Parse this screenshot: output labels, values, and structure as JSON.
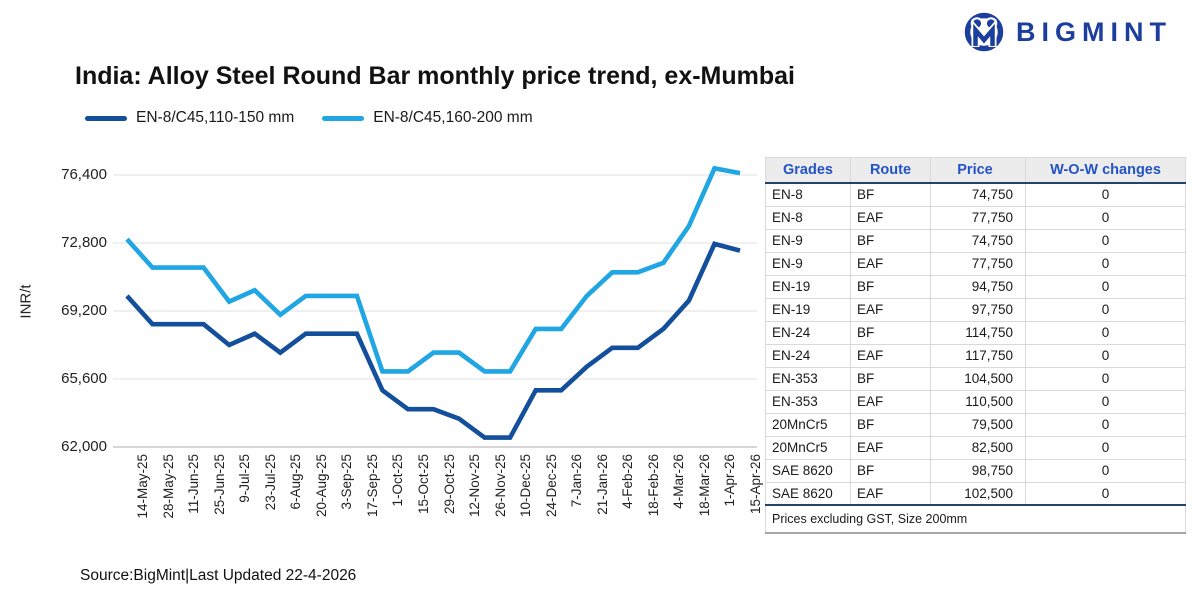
{
  "brand": {
    "name": "BIGMINT"
  },
  "title": "India: Alloy Steel Round Bar monthly price trend, ex-Mumbai",
  "source_note": "Source:BigMint|Last Updated 22-4-2026",
  "colors": {
    "brand_blue": "#1c3f9e",
    "series_dark": "#134f9b",
    "series_light": "#1fa6e3",
    "table_header_text": "#2353c5",
    "table_heavy_border": "#24426b",
    "gridline": "#e6e6e6",
    "axis_line": "#c9c9c9"
  },
  "chart_data": {
    "type": "line",
    "title": "India: Alloy Steel Round Bar monthly price trend, ex-Mumbai",
    "xlabel": "",
    "ylabel": "INR/t",
    "grid": "horizontal",
    "legend_position": "top-left",
    "ylim": [
      62000,
      76400
    ],
    "yticks": [
      62000,
      65600,
      69200,
      72800,
      76400
    ],
    "ytick_labels": [
      "62,000",
      "65,600",
      "69,200",
      "72,800",
      "76,400"
    ],
    "x": [
      "14-May-25",
      "28-May-25",
      "11-Jun-25",
      "25-Jun-25",
      "9-Jul-25",
      "23-Jul-25",
      "6-Aug-25",
      "20-Aug-25",
      "3-Sep-25",
      "17-Sep-25",
      "1-Oct-25",
      "15-Oct-25",
      "29-Oct-25",
      "12-Nov-25",
      "26-Nov-25",
      "10-Dec-25",
      "24-Dec-25",
      "7-Jan-26",
      "21-Jan-26",
      "4-Feb-26",
      "18-Feb-26",
      "4-Mar-26",
      "18-Mar-26",
      "1-Apr-26",
      "15-Apr-26"
    ],
    "series": [
      {
        "name": "EN-8/C45,110-150 mm",
        "color": "#134f9b",
        "values": [
          70000,
          68500,
          68500,
          68500,
          67400,
          68000,
          67000,
          68000,
          68000,
          68000,
          65000,
          64000,
          64000,
          63500,
          62500,
          62500,
          65000,
          65000,
          66250,
          67250,
          67250,
          68250,
          69750,
          72750,
          72400
        ]
      },
      {
        "name": "EN-8/C45,160-200 mm",
        "color": "#1fa6e3",
        "values": [
          73000,
          71500,
          71500,
          71500,
          69700,
          70300,
          69000,
          70000,
          70000,
          70000,
          66000,
          66000,
          67000,
          67000,
          66000,
          66000,
          68250,
          68250,
          70000,
          71250,
          71250,
          71750,
          73700,
          76750,
          76500
        ]
      }
    ]
  },
  "table": {
    "headers": [
      "Grades",
      "Route",
      "Price",
      "W-O-W changes"
    ],
    "rows": [
      [
        "EN-8",
        "BF",
        "74,750",
        "0"
      ],
      [
        "EN-8",
        "EAF",
        "77,750",
        "0"
      ],
      [
        "EN-9",
        "BF",
        "74,750",
        "0"
      ],
      [
        "EN-9",
        "EAF",
        "77,750",
        "0"
      ],
      [
        "EN-19",
        "BF",
        "94,750",
        "0"
      ],
      [
        "EN-19",
        "EAF",
        "97,750",
        "0"
      ],
      [
        "EN-24",
        "BF",
        "114,750",
        "0"
      ],
      [
        "EN-24",
        "EAF",
        "117,750",
        "0"
      ],
      [
        "EN-353",
        "BF",
        "104,500",
        "0"
      ],
      [
        "EN-353",
        "EAF",
        "110,500",
        "0"
      ],
      [
        "20MnCr5",
        "BF",
        "79,500",
        "0"
      ],
      [
        "20MnCr5",
        "EAF",
        "82,500",
        "0"
      ],
      [
        "SAE 8620",
        "BF",
        "98,750",
        "0"
      ],
      [
        "SAE 8620",
        "EAF",
        "102,500",
        "0"
      ]
    ],
    "footer": "Prices excluding GST, Size 200mm"
  }
}
